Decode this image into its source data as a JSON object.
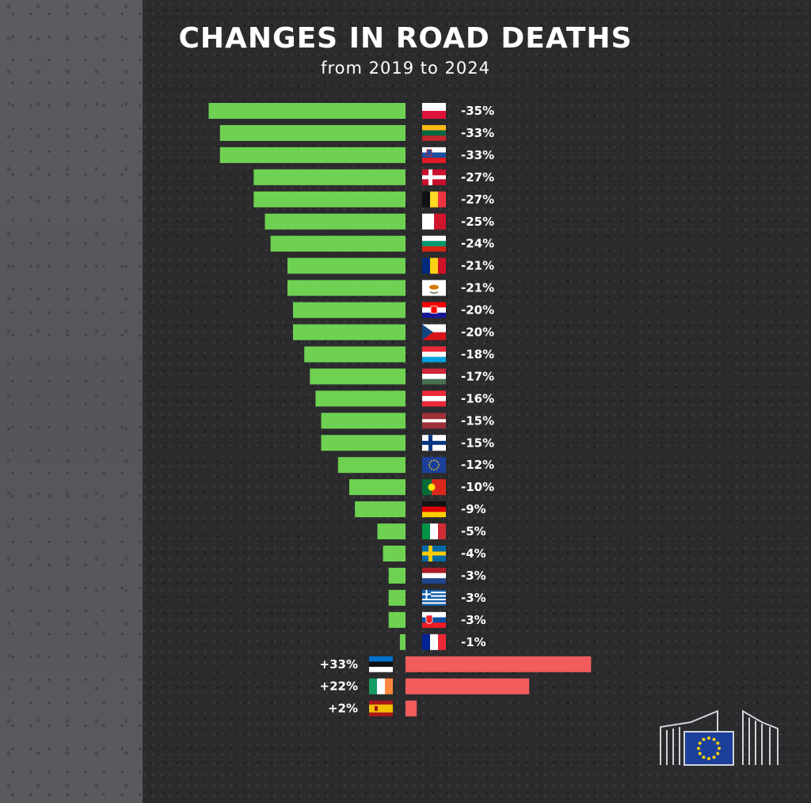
{
  "title": "CHANGES IN ROAD DEATHS",
  "subtitle": "from 2019 to 2024",
  "colors": {
    "decrease": "#6ed152",
    "increase": "#f25c5c",
    "text": "#ffffff"
  },
  "chart_data": {
    "type": "bar",
    "orientation": "horizontal",
    "unit": "%",
    "categories": [
      "PL",
      "LT",
      "SI",
      "DK",
      "BE",
      "MT",
      "BG",
      "RO",
      "CY",
      "HR",
      "CZ",
      "LU",
      "HU",
      "AT",
      "LV",
      "FI",
      "EU",
      "PT",
      "DE",
      "IT",
      "SE",
      "NL",
      "EL",
      "SK",
      "FR",
      "EE",
      "IE",
      "ES"
    ],
    "values": [
      -35,
      -33,
      -33,
      -27,
      -27,
      -25,
      -24,
      -21,
      -21,
      -20,
      -20,
      -18,
      -17,
      -16,
      -15,
      -15,
      -12,
      -10,
      -9,
      -5,
      -4,
      -3,
      -3,
      -3,
      -1,
      33,
      22,
      2
    ],
    "labels": [
      "-35%",
      "-33%",
      "-33%",
      "-27%",
      "-27%",
      "-25%",
      "-24%",
      "-21%",
      "-21%",
      "-20%",
      "-20%",
      "-18%",
      "-17%",
      "-16%",
      "-15%",
      "-15%",
      "-12%",
      "-10%",
      "-9%",
      "-5%",
      "-4%",
      "-3%",
      "-3%",
      "-3%",
      "-1%",
      "+33%",
      "+22%",
      "+2%"
    ],
    "flags": [
      "poland-flag",
      "lithuania-flag",
      "slovenia-flag",
      "denmark-flag",
      "belgium-flag",
      "malta-flag",
      "bulgaria-flag",
      "romania-flag",
      "cyprus-flag",
      "croatia-flag",
      "czechia-flag",
      "luxembourg-flag",
      "hungary-flag",
      "austria-flag",
      "latvia-flag",
      "finland-flag",
      "eu-flag",
      "portugal-flag",
      "germany-flag",
      "italy-flag",
      "sweden-flag",
      "netherlands-flag",
      "greece-flag",
      "slovakia-flag",
      "france-flag",
      "estonia-flag",
      "ireland-flag",
      "spain-flag"
    ],
    "grid": false,
    "legend": "none"
  },
  "logo": {
    "icon": "european-commission-logo"
  }
}
